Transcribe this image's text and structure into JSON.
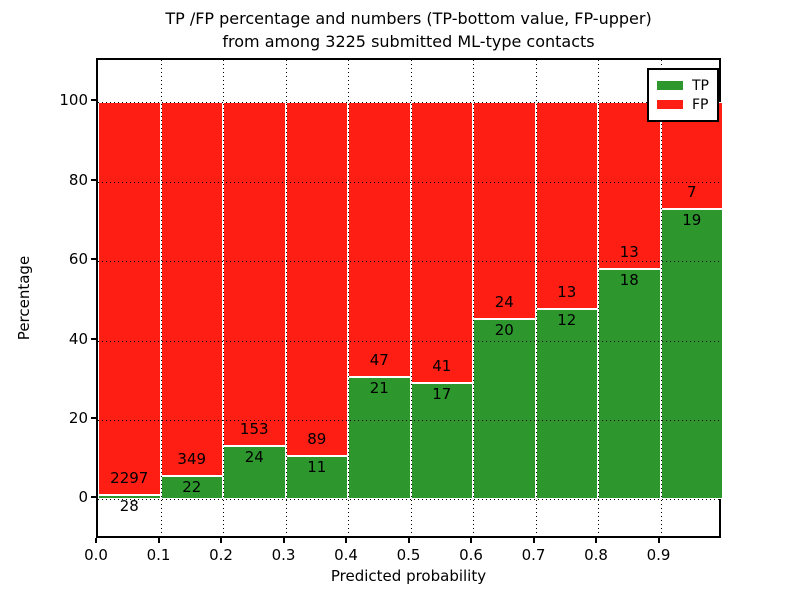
{
  "colors": {
    "tp_green": "#2d962d",
    "fp_red": "#ff1e14",
    "text": "#000000",
    "frame": "#000000",
    "background": "#ffffff"
  },
  "chart_data": {
    "type": "bar",
    "stacked": true,
    "normalized_to_percent": true,
    "title_line1": "TP /FP percentage and numbers (TP-bottom value, FP-upper)",
    "title_line2": "from among 3225 submitted ML-type contacts",
    "xlabel": "Predicted probability",
    "ylabel": "Percentage",
    "categories": [
      "0.0",
      "0.1",
      "0.2",
      "0.3",
      "0.4",
      "0.5",
      "0.6",
      "0.7",
      "0.8",
      "0.9"
    ],
    "x_start_values": [
      0.0,
      0.1,
      0.2,
      0.3,
      0.4,
      0.5,
      0.6,
      0.7,
      0.8,
      0.9
    ],
    "bar_span": 0.1,
    "series": [
      {
        "name": "TP",
        "color": "#2d962d",
        "counts": [
          28,
          22,
          24,
          11,
          21,
          17,
          20,
          12,
          18,
          19
        ]
      },
      {
        "name": "FP",
        "color": "#ff1e14",
        "counts": [
          2297,
          349,
          153,
          89,
          47,
          41,
          24,
          13,
          13,
          7
        ]
      }
    ],
    "tp_percent_heights": [
      1.2,
      5.9,
      13.6,
      11.0,
      30.9,
      29.3,
      45.5,
      48.0,
      58.1,
      73.1
    ],
    "fp_percent_heights": [
      98.8,
      94.1,
      86.4,
      89.0,
      69.1,
      70.7,
      54.5,
      52.0,
      41.9,
      26.9
    ],
    "yticks": [
      0,
      20,
      40,
      60,
      80,
      100
    ],
    "xtick_labels": [
      "0.0",
      "0.1",
      "0.2",
      "0.3",
      "0.4",
      "0.5",
      "0.6",
      "0.7",
      "0.8",
      "0.9"
    ],
    "ylim": [
      -10.2,
      110.6
    ],
    "xlim": [
      0.0,
      1.0
    ],
    "grid": {
      "style": "dotted",
      "color": "#000000",
      "above_bars": true
    },
    "legend": {
      "position": "upper-right",
      "entries": [
        {
          "label": "TP",
          "color": "#2d962d"
        },
        {
          "label": "FP",
          "color": "#ff1e14"
        }
      ]
    }
  }
}
